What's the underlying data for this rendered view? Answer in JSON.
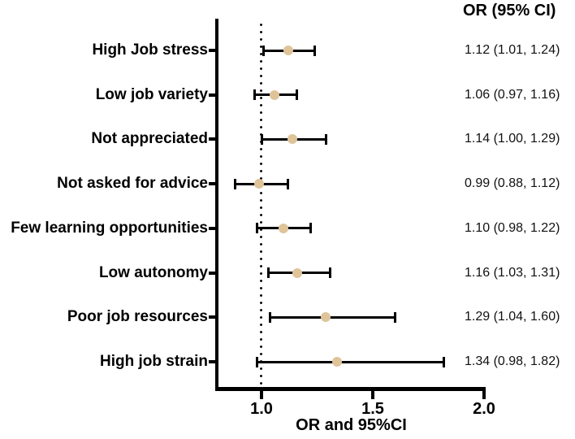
{
  "chart_data": {
    "type": "scatter",
    "subtype": "forest-plot",
    "title": "",
    "xlabel": "OR and 95%CI",
    "or_column_header": "OR (95% CI)",
    "xlim": [
      0.8,
      2.0
    ],
    "x_tick_labels": [
      "1.0",
      "1.5",
      "2.0"
    ],
    "x_tick_values": [
      1.0,
      1.5,
      2.0
    ],
    "reference_line_x": 1.0,
    "grid": false,
    "legend": "none",
    "marker_color": "#DFC49A",
    "errorbar_color": "#000000",
    "axis_color": "#000000",
    "rows": [
      {
        "label": "High Job stress",
        "or": 1.12,
        "ci_low": 1.01,
        "ci_high": 1.24,
        "display": "1.12 (1.01, 1.24)"
      },
      {
        "label": "Low job variety",
        "or": 1.06,
        "ci_low": 0.97,
        "ci_high": 1.16,
        "display": "1.06 (0.97, 1.16)"
      },
      {
        "label": "Not appreciated",
        "or": 1.14,
        "ci_low": 1.0,
        "ci_high": 1.29,
        "display": "1.14 (1.00, 1.29)"
      },
      {
        "label": "Not asked for advice",
        "or": 0.99,
        "ci_low": 0.88,
        "ci_high": 1.12,
        "display": "0.99 (0.88, 1.12)"
      },
      {
        "label": "Few learning opportunities",
        "or": 1.1,
        "ci_low": 0.98,
        "ci_high": 1.22,
        "display": "1.10 (0.98, 1.22)"
      },
      {
        "label": "Low autonomy",
        "or": 1.16,
        "ci_low": 1.03,
        "ci_high": 1.31,
        "display": "1.16 (1.03, 1.31)"
      },
      {
        "label": "Poor job resources",
        "or": 1.29,
        "ci_low": 1.04,
        "ci_high": 1.6,
        "display": "1.29 (1.04, 1.60)"
      },
      {
        "label": "High job strain",
        "or": 1.34,
        "ci_low": 0.98,
        "ci_high": 1.82,
        "display": "1.34 (0.98, 1.82)"
      }
    ]
  }
}
